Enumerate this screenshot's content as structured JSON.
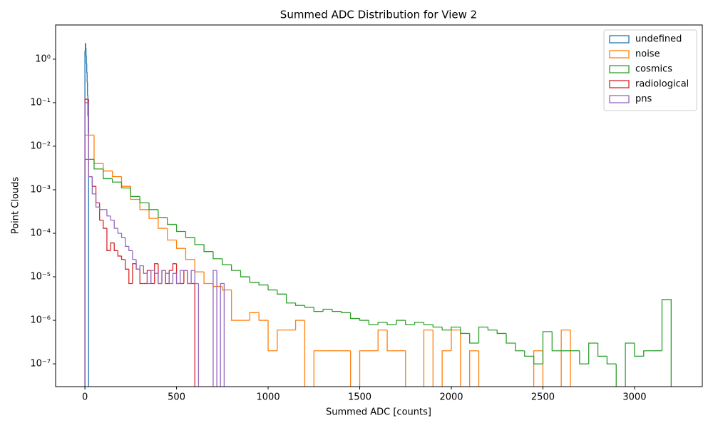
{
  "chart_data": {
    "type": "histogram",
    "title": "Summed ADC Distribution for View 2",
    "xlabel": "Summed ADC [counts]",
    "ylabel": "Point Clouds",
    "xlim": [
      -160,
      3370
    ],
    "ylim": [
      3e-08,
      6.1
    ],
    "log_y": true,
    "xticks": [
      0,
      500,
      1000,
      1500,
      2000,
      2500,
      3000
    ],
    "yticks": [
      {
        "value": 1e-07,
        "label": "10⁻⁷"
      },
      {
        "value": 1e-06,
        "label": "10⁻⁶"
      },
      {
        "value": 1e-05,
        "label": "10⁻⁵"
      },
      {
        "value": 0.0001,
        "label": "10⁻⁴"
      },
      {
        "value": 0.001,
        "label": "10⁻³"
      },
      {
        "value": 0.01,
        "label": "10⁻²"
      },
      {
        "value": 0.1,
        "label": "10⁻¹"
      },
      {
        "value": 1,
        "label": "10⁰"
      }
    ],
    "legend": "upper right",
    "series": [
      {
        "name": "undefined",
        "color": "#1f77b4",
        "bins": [
          0,
          2,
          4,
          6,
          8,
          10,
          12,
          14,
          16,
          18,
          20
        ],
        "values": [
          1.5,
          2.3,
          1.8,
          1.2,
          0.8,
          0.5,
          0.3,
          0.15,
          0.05,
          0.02
        ]
      },
      {
        "name": "noise",
        "color": "#ff7f0e",
        "bins": [
          0,
          50,
          100,
          150,
          200,
          250,
          300,
          350,
          400,
          450,
          500,
          550,
          600,
          650,
          700,
          750,
          800,
          850,
          900,
          950,
          1000,
          1050,
          1100,
          1150,
          1200,
          1250,
          1300,
          1350,
          1400,
          1450,
          1500,
          1550,
          1600,
          1650,
          1700,
          1750,
          1800,
          1850,
          1900,
          1950,
          2000,
          2050,
          2100,
          2150,
          2200,
          2250,
          2300,
          2350,
          2400,
          2450,
          2500,
          2550,
          2600,
          2650
        ],
        "values": [
          0.018,
          0.004,
          0.0027,
          0.002,
          0.0012,
          0.0006,
          0.00035,
          0.00022,
          0.00013,
          7e-05,
          4.5e-05,
          2.5e-05,
          1.3e-05,
          7e-06,
          6e-06,
          5e-06,
          1e-06,
          1e-06,
          1.5e-06,
          1e-06,
          2e-07,
          6e-07,
          6e-07,
          1e-06,
          0,
          2e-07,
          2e-07,
          2e-07,
          2e-07,
          0,
          2e-07,
          2e-07,
          6e-07,
          2e-07,
          2e-07,
          0,
          0,
          6e-07,
          0,
          2e-07,
          6e-07,
          0,
          2e-07,
          0,
          0,
          0,
          0,
          0,
          0,
          2e-07,
          0,
          0,
          6e-07
        ]
      },
      {
        "name": "cosmics",
        "color": "#2ca02c",
        "bins": [
          0,
          50,
          100,
          150,
          200,
          250,
          300,
          350,
          400,
          450,
          500,
          550,
          600,
          650,
          700,
          750,
          800,
          850,
          900,
          950,
          1000,
          1050,
          1100,
          1150,
          1200,
          1250,
          1300,
          1350,
          1400,
          1450,
          1500,
          1550,
          1600,
          1650,
          1700,
          1750,
          1800,
          1850,
          1900,
          1950,
          2000,
          2050,
          2100,
          2150,
          2200,
          2250,
          2300,
          2350,
          2400,
          2450,
          2500,
          2550,
          2600,
          2650,
          2700,
          2750,
          2800,
          2850,
          2900,
          2950,
          3000,
          3050,
          3100,
          3150,
          3200
        ],
        "values": [
          0.005,
          0.003,
          0.0018,
          0.0015,
          0.0011,
          0.0007,
          0.0005,
          0.00035,
          0.00023,
          0.00016,
          0.00011,
          8e-05,
          5.5e-05,
          3.8e-05,
          2.6e-05,
          1.9e-05,
          1.4e-05,
          1e-05,
          7.5e-06,
          6.5e-06,
          5e-06,
          4e-06,
          2.5e-06,
          2.2e-06,
          2e-06,
          1.6e-06,
          1.8e-06,
          1.6e-06,
          1.5e-06,
          1.1e-06,
          1e-06,
          8e-07,
          9e-07,
          8e-07,
          1e-06,
          8e-07,
          9e-07,
          8e-07,
          7e-07,
          6e-07,
          7e-07,
          5e-07,
          3e-07,
          7e-07,
          6e-07,
          5e-07,
          3e-07,
          2e-07,
          1.5e-07,
          1e-07,
          5.5e-07,
          2e-07,
          2e-07,
          2e-07,
          1e-07,
          3e-07,
          1.5e-07,
          1e-07,
          0,
          3e-07,
          1.5e-07,
          2e-07,
          2e-07,
          3e-06
        ]
      },
      {
        "name": "radiological",
        "color": "#d62728",
        "bins": [
          0,
          20,
          40,
          60,
          80,
          100,
          120,
          140,
          160,
          180,
          200,
          220,
          240,
          260,
          280,
          300,
          320,
          340,
          360,
          380,
          400,
          420,
          440,
          460,
          480,
          500,
          520,
          540,
          560,
          580,
          600
        ],
        "values": [
          0.12,
          0.002,
          0.0012,
          0.0005,
          0.0002,
          0.00013,
          4e-05,
          6e-05,
          4e-05,
          3e-05,
          2.5e-05,
          1.5e-05,
          7e-06,
          2e-05,
          1.5e-05,
          7e-06,
          7e-06,
          1.4e-05,
          7e-06,
          2e-05,
          7e-06,
          1.4e-05,
          7e-06,
          1.4e-05,
          2e-05,
          7e-06,
          7e-06,
          1.4e-05,
          7e-06,
          7e-06
        ]
      },
      {
        "name": "pns",
        "color": "#9467bd",
        "bins": [
          0,
          20,
          40,
          60,
          80,
          100,
          120,
          140,
          160,
          180,
          200,
          220,
          240,
          260,
          280,
          300,
          320,
          340,
          360,
          380,
          400,
          420,
          440,
          460,
          480,
          500,
          520,
          540,
          560,
          580,
          600,
          620,
          640,
          660,
          680,
          700,
          720,
          740,
          760
        ],
        "values": [
          0.1,
          0.002,
          0.0008,
          0.0004,
          0.00035,
          0.00035,
          0.00025,
          0.0002,
          0.00013,
          0.0001,
          8e-05,
          5e-05,
          4e-05,
          2.5e-05,
          1.5e-05,
          1.8e-05,
          1.2e-05,
          7e-06,
          1.4e-05,
          1.2e-05,
          7e-06,
          1.4e-05,
          1.2e-05,
          7e-06,
          1.2e-05,
          7e-06,
          1.4e-05,
          1.4e-05,
          7e-06,
          1.4e-05,
          7e-06,
          0,
          0,
          0,
          0,
          1.4e-05,
          0,
          7e-06
        ]
      }
    ]
  }
}
